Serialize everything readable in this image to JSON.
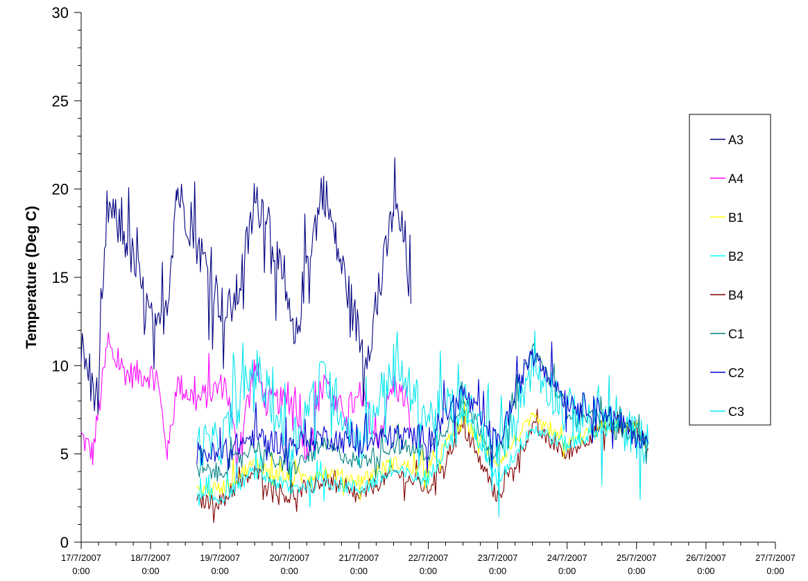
{
  "chart_data": {
    "type": "line",
    "title": "",
    "xlabel": "",
    "ylabel": "Temperature (Deg C)",
    "ylim": [
      0,
      30
    ],
    "yticks": [
      0,
      5,
      10,
      15,
      20,
      25,
      30
    ],
    "xlim": [
      "17/7/2007 0:00",
      "27/7/2007 0:00"
    ],
    "xticks": [
      {
        "date": "17/7/2007",
        "time": "0:00"
      },
      {
        "date": "18/7/2007",
        "time": "0:00"
      },
      {
        "date": "19/7/2007",
        "time": "0:00"
      },
      {
        "date": "20/7/2007",
        "time": "0:00"
      },
      {
        "date": "21/7/2007",
        "time": "0:00"
      },
      {
        "date": "22/7/2007",
        "time": "0:00"
      },
      {
        "date": "23/7/2007",
        "time": "0:00"
      },
      {
        "date": "24/7/2007",
        "time": "0:00"
      },
      {
        "date": "25/7/2007",
        "time": "0:00"
      },
      {
        "date": "26/7/2007",
        "time": "0:00"
      },
      {
        "date": "27/7/2007",
        "time": "0:00"
      }
    ],
    "grid": false,
    "legend_position": "right",
    "series": [
      {
        "name": "A3",
        "color": "#000080",
        "x": [
          "17/7/2007 0:00",
          "17/7/2007 6:00",
          "17/7/2007 9:00",
          "17/7/2007 16:00",
          "18/7/2007 2:00",
          "18/7/2007 6:00",
          "18/7/2007 9:00",
          "18/7/2007 16:00",
          "19/7/2007 2:00",
          "19/7/2007 6:00",
          "19/7/2007 12:00",
          "19/7/2007 16:00",
          "20/7/2007 2:00",
          "20/7/2007 6:00",
          "20/7/2007 12:00",
          "20/7/2007 16:00",
          "21/7/2007 2:00",
          "21/7/2007 6:00",
          "21/7/2007 12:00",
          "21/7/2007 16:00",
          "21/7/2007 18:00"
        ],
        "y": [
          11,
          8,
          19,
          17,
          11.5,
          14,
          20,
          17,
          12.8,
          14,
          19,
          19,
          11,
          16,
          20,
          17,
          10.5,
          13,
          19,
          17,
          13.5
        ]
      },
      {
        "name": "A4",
        "color": "#FF00FF",
        "x": [
          "17/7/2007 0:00",
          "17/7/2007 4:00",
          "17/7/2007 9:00",
          "17/7/2007 16:00",
          "18/7/2007 2:00",
          "18/7/2007 6:00",
          "18/7/2007 9:00",
          "18/7/2007 16:00",
          "19/7/2007 2:00",
          "19/7/2007 6:00",
          "19/7/2007 12:00",
          "19/7/2007 16:00",
          "20/7/2007 2:00",
          "20/7/2007 6:00",
          "20/7/2007 12:00",
          "20/7/2007 16:00",
          "21/7/2007 2:00",
          "21/7/2007 6:00",
          "21/7/2007 12:00",
          "21/7/2007 16:00",
          "21/7/2007 18:00"
        ],
        "y": [
          6,
          5,
          11,
          9.5,
          9.5,
          5,
          9,
          8,
          9,
          5,
          10,
          8,
          8,
          5,
          9.5,
          7.5,
          8,
          5.5,
          9,
          8,
          6.5
        ]
      },
      {
        "name": "B1",
        "color": "#FFFF00",
        "x": [
          "18/7/2007 16:00",
          "19/7/2007 0:00",
          "19/7/2007 12:00",
          "20/7/2007 0:00",
          "20/7/2007 12:00",
          "21/7/2007 0:00",
          "21/7/2007 12:00",
          "22/7/2007 0:00",
          "22/7/2007 12:00",
          "23/7/2007 0:00",
          "23/7/2007 12:00",
          "24/7/2007 0:00",
          "24/7/2007 12:00",
          "25/7/2007 0:00",
          "25/7/2007 4:00"
        ],
        "y": [
          3,
          3,
          4.5,
          3.5,
          4,
          3.5,
          4.5,
          4,
          7,
          4.5,
          7,
          5.5,
          6.5,
          6.5,
          5.5
        ]
      },
      {
        "name": "B2",
        "color": "#00FFFF",
        "x": [
          "18/7/2007 16:00",
          "19/7/2007 0:00",
          "19/7/2007 12:00",
          "20/7/2007 0:00",
          "20/7/2007 12:00",
          "21/7/2007 0:00",
          "21/7/2007 12:00",
          "22/7/2007 0:00",
          "22/7/2007 12:00",
          "23/7/2007 0:00",
          "23/7/2007 12:00",
          "24/7/2007 0:00",
          "24/7/2007 12:00",
          "25/7/2007 0:00",
          "25/7/2007 4:00"
        ],
        "y": [
          2.5,
          2.5,
          4,
          3,
          3.5,
          3,
          4,
          3.5,
          7.5,
          3.5,
          6.5,
          5.5,
          6.5,
          6.5,
          5.5
        ]
      },
      {
        "name": "B4",
        "color": "#800000",
        "x": [
          "18/7/2007 16:00",
          "19/7/2007 0:00",
          "19/7/2007 12:00",
          "20/7/2007 0:00",
          "20/7/2007 12:00",
          "21/7/2007 0:00",
          "21/7/2007 12:00",
          "22/7/2007 0:00",
          "22/7/2007 12:00",
          "23/7/2007 0:00",
          "23/7/2007 12:00",
          "24/7/2007 0:00",
          "24/7/2007 12:00",
          "25/7/2007 0:00",
          "25/7/2007 4:00"
        ],
        "y": [
          2.3,
          2.3,
          4,
          2.5,
          3.5,
          2.5,
          4,
          3,
          6.5,
          2.5,
          6.5,
          5,
          6.5,
          6.5,
          5.3
        ]
      },
      {
        "name": "C1",
        "color": "#008080",
        "x": [
          "18/7/2007 16:00",
          "19/7/2007 0:00",
          "19/7/2007 12:00",
          "20/7/2007 0:00",
          "20/7/2007 12:00",
          "21/7/2007 0:00",
          "21/7/2007 12:00",
          "22/7/2007 0:00",
          "22/7/2007 12:00",
          "23/7/2007 0:00",
          "23/7/2007 12:00",
          "24/7/2007 0:00",
          "24/7/2007 12:00",
          "25/7/2007 0:00",
          "25/7/2007 4:00"
        ],
        "y": [
          4,
          4,
          5.5,
          4,
          5.5,
          4.5,
          5.5,
          5,
          8,
          4.8,
          11,
          7.5,
          7,
          6,
          5.5
        ]
      },
      {
        "name": "C2",
        "color": "#0000CD",
        "x": [
          "18/7/2007 16:00",
          "19/7/2007 0:00",
          "19/7/2007 12:00",
          "20/7/2007 0:00",
          "20/7/2007 12:00",
          "21/7/2007 0:00",
          "21/7/2007 12:00",
          "22/7/2007 0:00",
          "22/7/2007 12:00",
          "23/7/2007 0:00",
          "23/7/2007 12:00",
          "24/7/2007 0:00",
          "24/7/2007 12:00",
          "25/7/2007 0:00",
          "25/7/2007 4:00"
        ],
        "y": [
          5,
          5,
          6,
          5.5,
          6,
          5.5,
          6,
          6,
          8.5,
          5.5,
          11,
          8,
          7.5,
          6,
          5.6
        ]
      },
      {
        "name": "C3",
        "color": "#00E5EE",
        "x": [
          "18/7/2007 16:00",
          "19/7/2007 0:00",
          "19/7/2007 12:00",
          "20/7/2007 0:00",
          "20/7/2007 12:00",
          "21/7/2007 0:00",
          "21/7/2007 12:00",
          "22/7/2007 0:00",
          "22/7/2007 12:00",
          "23/7/2007 0:00",
          "23/7/2007 12:00",
          "24/7/2007 0:00",
          "24/7/2007 12:00",
          "25/7/2007 0:00",
          "25/7/2007 4:00"
        ],
        "y": [
          5.5,
          5.5,
          10,
          5.5,
          9.5,
          5.5,
          10,
          7,
          8,
          5,
          10,
          7.5,
          7,
          6,
          5.5
        ]
      }
    ]
  }
}
